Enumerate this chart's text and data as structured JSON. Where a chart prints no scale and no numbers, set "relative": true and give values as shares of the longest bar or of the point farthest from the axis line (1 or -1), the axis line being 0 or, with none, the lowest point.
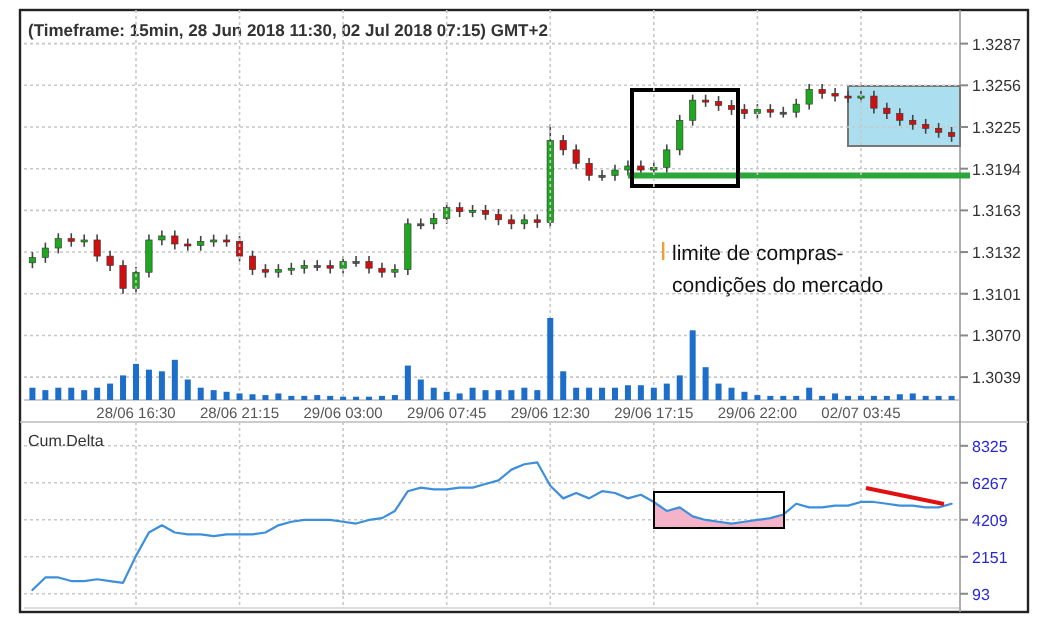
{
  "chart_data": [
    {
      "type": "candlestick",
      "title": "(Timeframe: 15min, 28 Jun 2018 11:30, 02 Jul 2018 07:15) GMT+2",
      "categories": [
        null,
        null,
        null,
        null,
        null,
        null,
        null,
        null,
        null,
        null,
        null,
        null,
        null,
        null,
        null,
        null,
        null,
        null,
        null,
        null,
        null,
        null,
        null,
        null,
        null,
        null,
        null,
        null,
        null,
        null,
        null,
        null,
        null,
        null,
        null,
        null,
        null,
        null,
        null,
        null,
        null,
        null,
        null,
        null,
        null,
        null,
        null,
        null,
        null,
        null,
        null,
        null,
        null,
        null,
        null,
        null,
        null,
        null,
        null,
        null,
        null,
        null,
        null,
        null,
        null,
        null,
        null,
        null,
        null,
        null,
        null,
        null
      ],
      "ohlc": [
        [
          1.3124,
          1.3132,
          1.312,
          1.3128
        ],
        [
          1.3128,
          1.3139,
          1.3124,
          1.3135
        ],
        [
          1.3135,
          1.3146,
          1.3131,
          1.3142
        ],
        [
          1.3142,
          1.3146,
          1.3136,
          1.314
        ],
        [
          1.314,
          1.3145,
          1.3136,
          1.3141
        ],
        [
          1.3141,
          1.3145,
          1.3125,
          1.3129
        ],
        [
          1.3129,
          1.3133,
          1.3118,
          1.3122
        ],
        [
          1.3122,
          1.3126,
          1.3101,
          1.3105
        ],
        [
          1.3105,
          1.3121,
          1.3101,
          1.3117
        ],
        [
          1.3117,
          1.3145,
          1.3113,
          1.3141
        ],
        [
          1.3141,
          1.3148,
          1.3137,
          1.3144
        ],
        [
          1.3144,
          1.3148,
          1.3134,
          1.3138
        ],
        [
          1.3138,
          1.3142,
          1.3133,
          1.3137
        ],
        [
          1.3137,
          1.3144,
          1.3133,
          1.314
        ],
        [
          1.314,
          1.3145,
          1.3136,
          1.3141
        ],
        [
          1.3141,
          1.3145,
          1.3136,
          1.314
        ],
        [
          1.314,
          1.3144,
          1.3125,
          1.3129
        ],
        [
          1.3129,
          1.3133,
          1.3115,
          1.3119
        ],
        [
          1.3119,
          1.3123,
          1.3113,
          1.3117
        ],
        [
          1.3117,
          1.3123,
          1.3113,
          1.3119
        ],
        [
          1.3119,
          1.3124,
          1.3115,
          1.312
        ],
        [
          1.312,
          1.3126,
          1.3116,
          1.3122
        ],
        [
          1.3122,
          1.3126,
          1.3118,
          1.3122
        ],
        [
          1.3122,
          1.3126,
          1.3116,
          1.312
        ],
        [
          1.312,
          1.3129,
          1.3116,
          1.3125
        ],
        [
          1.3125,
          1.3129,
          1.3121,
          1.3125
        ],
        [
          1.3125,
          1.3129,
          1.3116,
          1.312
        ],
        [
          1.312,
          1.3124,
          1.3113,
          1.3117
        ],
        [
          1.3117,
          1.3123,
          1.3113,
          1.3119
        ],
        [
          1.3119,
          1.3157,
          1.3115,
          1.3153
        ],
        [
          1.3153,
          1.3157,
          1.3149,
          1.3153
        ],
        [
          1.3153,
          1.3161,
          1.3149,
          1.3157
        ],
        [
          1.3157,
          1.3169,
          1.3153,
          1.3165
        ],
        [
          1.3165,
          1.3169,
          1.3158,
          1.3162
        ],
        [
          1.3162,
          1.3167,
          1.3158,
          1.3163
        ],
        [
          1.3163,
          1.3167,
          1.3156,
          1.316
        ],
        [
          1.316,
          1.3164,
          1.3152,
          1.3156
        ],
        [
          1.3156,
          1.316,
          1.3149,
          1.3153
        ],
        [
          1.3153,
          1.316,
          1.3149,
          1.3156
        ],
        [
          1.3156,
          1.316,
          1.315,
          1.3154
        ],
        [
          1.3154,
          1.3227,
          1.315,
          1.3215
        ],
        [
          1.3215,
          1.3219,
          1.3204,
          1.3208
        ],
        [
          1.3208,
          1.3212,
          1.3194,
          1.3198
        ],
        [
          1.3198,
          1.3202,
          1.3185,
          1.3189
        ],
        [
          1.3189,
          1.3193,
          1.3185,
          1.3189
        ],
        [
          1.3189,
          1.3197,
          1.3185,
          1.3193
        ],
        [
          1.3193,
          1.32,
          1.3189,
          1.3196
        ],
        [
          1.3196,
          1.32,
          1.3189,
          1.3193
        ],
        [
          1.3193,
          1.3199,
          1.3189,
          1.3195
        ],
        [
          1.3195,
          1.3212,
          1.3191,
          1.3208
        ],
        [
          1.3208,
          1.3234,
          1.3204,
          1.323
        ],
        [
          1.323,
          1.3249,
          1.3226,
          1.3245
        ],
        [
          1.3245,
          1.3249,
          1.324,
          1.3244
        ],
        [
          1.3244,
          1.3248,
          1.3237,
          1.3241
        ],
        [
          1.3241,
          1.3245,
          1.3234,
          1.3238
        ],
        [
          1.3238,
          1.3242,
          1.3231,
          1.3235
        ],
        [
          1.3235,
          1.3242,
          1.3231,
          1.3238
        ],
        [
          1.3238,
          1.3242,
          1.3232,
          1.3236
        ],
        [
          1.3236,
          1.324,
          1.3232,
          1.3236
        ],
        [
          1.3236,
          1.3246,
          1.3232,
          1.3242
        ],
        [
          1.3242,
          1.3257,
          1.3238,
          1.3253
        ],
        [
          1.3253,
          1.3257,
          1.3246,
          1.325
        ],
        [
          1.325,
          1.3254,
          1.3244,
          1.3248
        ],
        [
          1.3248,
          1.3252,
          1.3243,
          1.3247
        ],
        [
          1.3247,
          1.3252,
          1.3243,
          1.3248
        ],
        [
          1.3248,
          1.3252,
          1.3235,
          1.3239
        ],
        [
          1.3239,
          1.3243,
          1.3231,
          1.3235
        ],
        [
          1.3235,
          1.3239,
          1.3226,
          1.323
        ],
        [
          1.323,
          1.3234,
          1.3223,
          1.3227
        ],
        [
          1.3227,
          1.3231,
          1.322,
          1.3224
        ],
        [
          1.3224,
          1.3228,
          1.3217,
          1.3221
        ],
        [
          1.3221,
          1.3225,
          1.3214,
          1.3218
        ]
      ],
      "ylim": [
        1.3022,
        1.3312
      ],
      "yticks": [
        1.3287,
        1.3256,
        1.3225,
        1.3194,
        1.3163,
        1.3132,
        1.3101,
        {
          "value": 1.307,
          "label": "1.3070"
        },
        1.3039
      ],
      "grid": "y",
      "tick_labels": "y",
      "ref_lines": [
        {
          "axis": "y",
          "value": 1.3189,
          "color": "#2ca53a"
        }
      ],
      "annotations": [
        "limite de compras-condições do mercado"
      ]
    },
    {
      "type": "bar",
      "relative": true,
      "color": "#1c6ec8",
      "tick_labels": "x",
      "grid": "x",
      "categories": [
        null,
        null,
        null,
        null,
        null,
        null,
        null,
        null,
        "28/06 16:30",
        null,
        null,
        null,
        null,
        null,
        null,
        null,
        "28/06 21:15",
        null,
        null,
        null,
        null,
        null,
        null,
        null,
        "29/06 03:00",
        null,
        null,
        null,
        null,
        null,
        null,
        null,
        "29/06 07:45",
        null,
        null,
        null,
        null,
        null,
        null,
        null,
        "29/06 12:30",
        null,
        null,
        null,
        null,
        null,
        null,
        null,
        "29/06 17:15",
        null,
        null,
        null,
        null,
        null,
        null,
        null,
        "29/06 22:00",
        null,
        null,
        null,
        null,
        null,
        null,
        null,
        "02/07 03:45",
        null,
        null,
        null,
        null,
        null,
        null,
        null
      ],
      "values": [
        0.15,
        0.12,
        0.15,
        0.15,
        0.12,
        0.15,
        0.2,
        0.3,
        0.44,
        0.37,
        0.35,
        0.49,
        0.25,
        0.15,
        0.12,
        0.1,
        0.08,
        0.07,
        0.06,
        0.08,
        0.05,
        0.05,
        0.06,
        0.05,
        0.04,
        0.04,
        0.04,
        0.05,
        0.06,
        0.42,
        0.25,
        0.15,
        0.1,
        0.08,
        0.15,
        0.12,
        0.12,
        0.12,
        0.15,
        0.12,
        1.0,
        0.35,
        0.15,
        0.15,
        0.15,
        0.15,
        0.18,
        0.18,
        0.15,
        0.2,
        0.3,
        0.85,
        0.4,
        0.2,
        0.15,
        0.1,
        0.06,
        0.05,
        0.05,
        0.05,
        0.15,
        0.05,
        0.08,
        0.05,
        0.05,
        0.05,
        0.05,
        0.07,
        0.08,
        0.05,
        0.05,
        0.05
      ]
    },
    {
      "type": "line",
      "title": "Cum.Delta",
      "tick_labels": "y",
      "grid": "y",
      "categories": [
        null,
        null,
        null,
        null,
        null,
        null,
        null,
        null,
        null,
        null,
        null,
        null,
        null,
        null,
        null,
        null,
        null,
        null,
        null,
        null,
        null,
        null,
        null,
        null,
        null,
        null,
        null,
        null,
        null,
        null,
        null,
        null,
        null,
        null,
        null,
        null,
        null,
        null,
        null,
        null,
        null,
        null,
        null,
        null,
        null,
        null,
        null,
        null,
        null,
        null,
        null,
        null,
        null,
        null,
        null,
        null,
        null,
        null,
        null,
        null,
        null,
        null,
        null,
        null,
        null,
        null,
        null,
        null,
        null,
        null,
        null,
        null
      ],
      "ylim": [
        -700,
        9650
      ],
      "yticks": [
        93,
        2151,
        4209,
        6267,
        8325
      ],
      "series": [
        {
          "color": "#3d8fdb",
          "values": [
            300,
            1000,
            1000,
            800,
            800,
            900,
            800,
            700,
            2200,
            3500,
            3900,
            3500,
            3400,
            3400,
            3300,
            3400,
            3400,
            3400,
            3500,
            3900,
            4100,
            4200,
            4200,
            4200,
            4100,
            4000,
            4200,
            4300,
            4700,
            5800,
            6000,
            5900,
            5900,
            6000,
            6000,
            6200,
            6400,
            7000,
            7300,
            7400,
            6100,
            5400,
            5700,
            5400,
            5800,
            5700,
            5400,
            5600,
            5200,
            4700,
            4900,
            4400,
            4200,
            4100,
            4000,
            4100,
            4200,
            4300,
            4500,
            5100,
            4900,
            4900,
            5000,
            5000,
            5200,
            5200,
            5100,
            5000,
            5000,
            4900,
            4900,
            5100
          ]
        }
      ]
    }
  ]
}
